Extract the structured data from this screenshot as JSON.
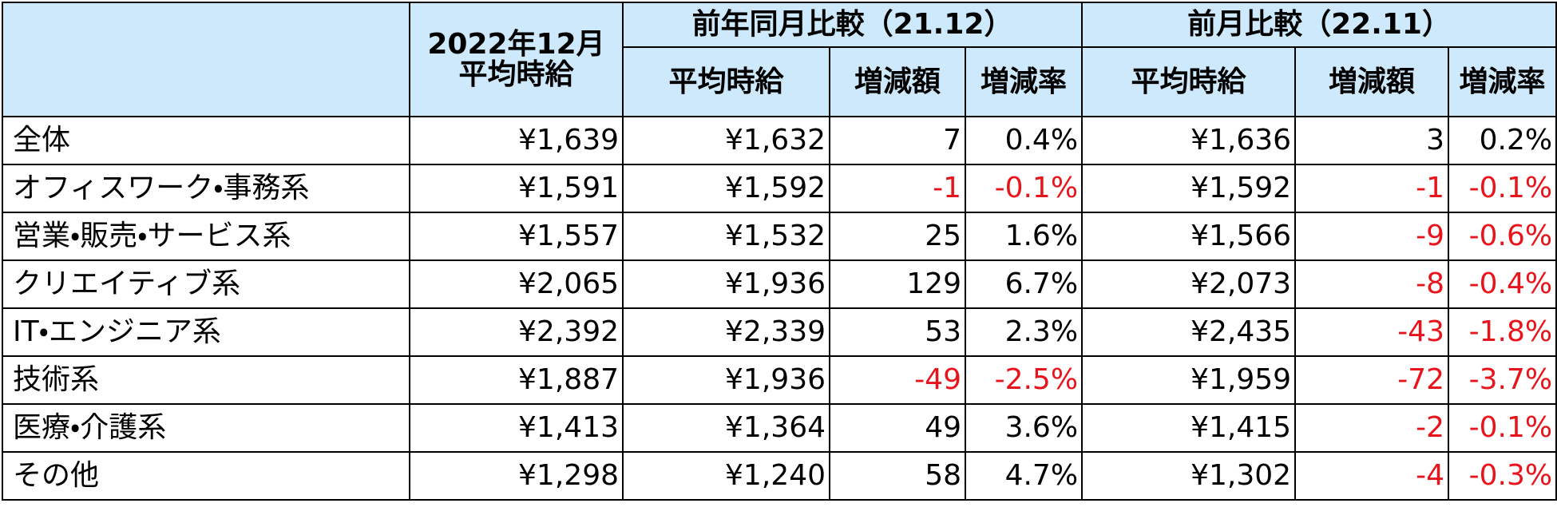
{
  "table": {
    "header": {
      "current": [
        "2022年12月",
        "平均時給"
      ],
      "groups": [
        "前年同月比較（21.12）",
        "前月比較（22.11）"
      ],
      "sub": [
        "平均時給",
        "増減額",
        "増減率",
        "平均時給",
        "増減額",
        "増減率"
      ]
    },
    "rows": [
      [
        "全体",
        "¥1,639",
        "¥1,632",
        "7",
        "0.4%",
        "¥1,636",
        "3",
        "0.2%"
      ],
      [
        "オフィスワーク・事務系",
        "¥1,591",
        "¥1,592",
        "-1",
        "-0.1%",
        "¥1,592",
        "-1",
        "-0.1%"
      ],
      [
        "営業・販売・サービス系",
        "¥1,557",
        "¥1,532",
        "25",
        "1.6%",
        "¥1,566",
        "-9",
        "-0.6%"
      ],
      [
        "クリエイティブ系",
        "¥2,065",
        "¥1,936",
        "129",
        "6.7%",
        "¥2,073",
        "-8",
        "-0.4%"
      ],
      [
        "IT・エンジニア系",
        "¥2,392",
        "¥2,339",
        "53",
        "2.3%",
        "¥2,435",
        "-43",
        "-1.8%"
      ],
      [
        "技術系",
        "¥1,887",
        "¥1,936",
        "-49",
        "-2.5%",
        "¥1,959",
        "-72",
        "-3.7%"
      ],
      [
        "医療・介護系",
        "¥1,413",
        "¥1,364",
        "49",
        "3.6%",
        "¥1,415",
        "-2",
        "-0.1%"
      ],
      [
        "その他",
        "¥1,298",
        "¥1,240",
        "58",
        "4.7%",
        "¥1,302",
        "-4",
        "-0.3%"
      ]
    ]
  }
}
